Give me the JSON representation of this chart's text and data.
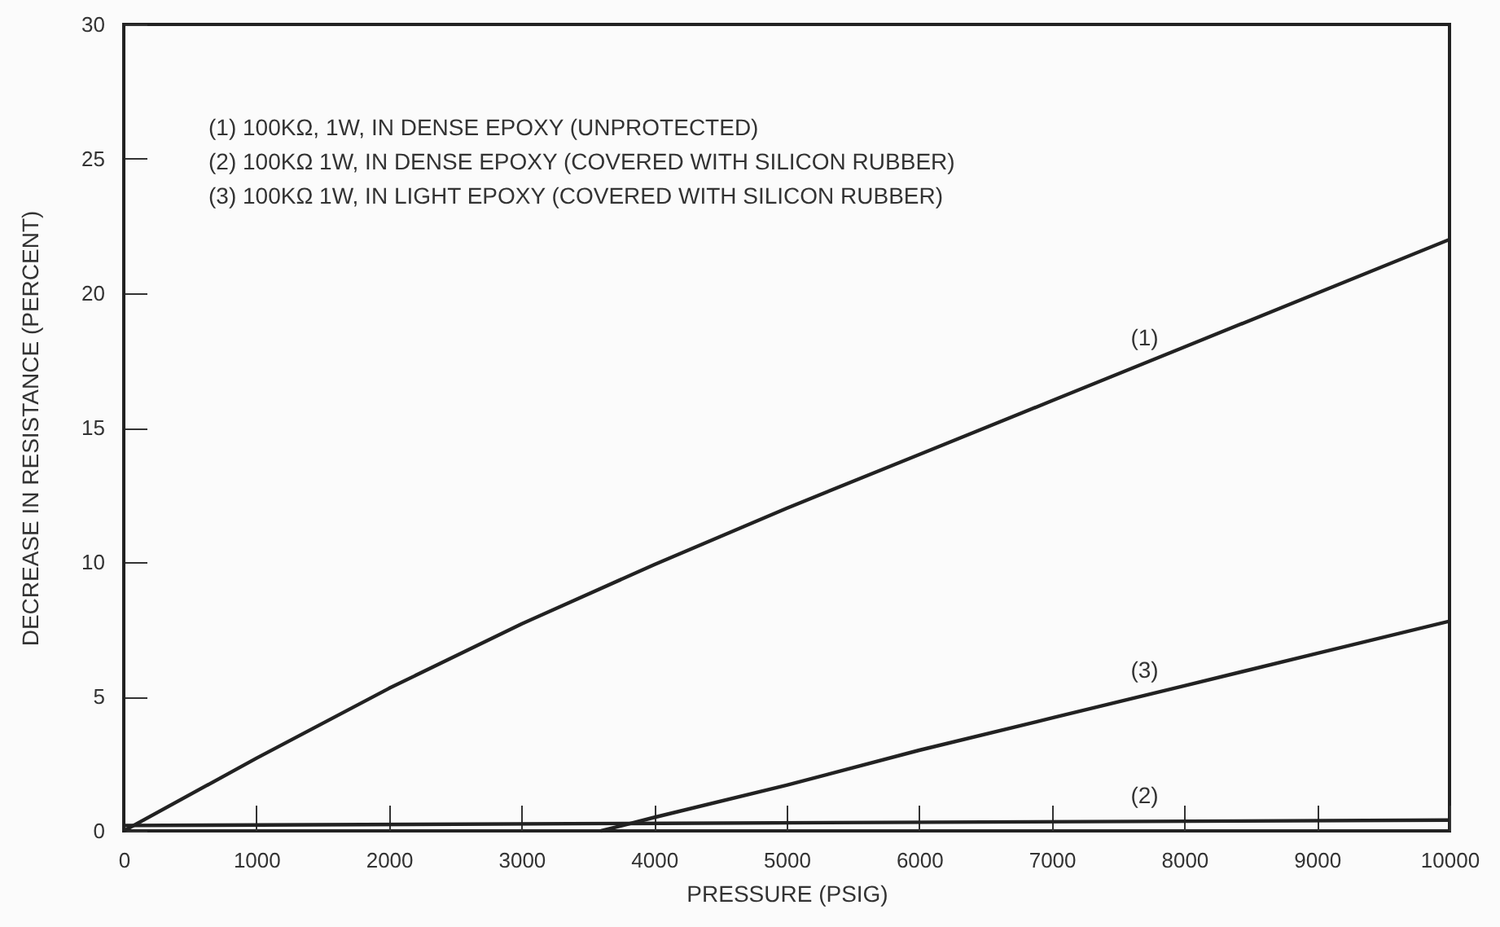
{
  "chart_data": {
    "type": "line",
    "xlabel": "PRESSURE (PSIG)",
    "ylabel": "DECREASE IN RESISTANCE (PERCENT)",
    "xlim": [
      0,
      10000
    ],
    "xticks": [
      0,
      1000,
      2000,
      3000,
      4000,
      5000,
      6000,
      7000,
      8000,
      9000,
      10000
    ],
    "ylim": [
      0,
      30
    ],
    "yticks": [
      0,
      5,
      10,
      15,
      20,
      25,
      30
    ],
    "grid": false,
    "marker": "none",
    "line_style": "solid",
    "series": [
      {
        "name": "(1)",
        "color": "#222222",
        "x": [
          0,
          1000,
          2000,
          3000,
          4000,
          5000,
          6000,
          7000,
          8000,
          9000,
          10000
        ],
        "values": [
          0,
          2.7,
          5.3,
          7.7,
          9.9,
          12,
          14,
          16,
          18,
          20,
          22
        ]
      },
      {
        "name": "(2)",
        "color": "#222222",
        "x": [
          0,
          10000
        ],
        "values": [
          0.2,
          0.4
        ]
      },
      {
        "name": "(3)",
        "color": "#222222",
        "x": [
          3600,
          4000,
          5000,
          6000,
          7000,
          8000,
          9000,
          10000
        ],
        "values": [
          0,
          0.5,
          1.7,
          3,
          4.2,
          5.4,
          6.6,
          7.8
        ]
      }
    ],
    "annotations": [
      "(1) 100KΩ, 1W, IN DENSE EPOXY (UNPROTECTED)",
      "(2) 100KΩ 1W, IN DENSE EPOXY (COVERED WITH SILICON RUBBER)",
      "(3) 100KΩ 1W, IN LIGHT EPOXY (COVERED WITH SILICON RUBBER)"
    ]
  }
}
